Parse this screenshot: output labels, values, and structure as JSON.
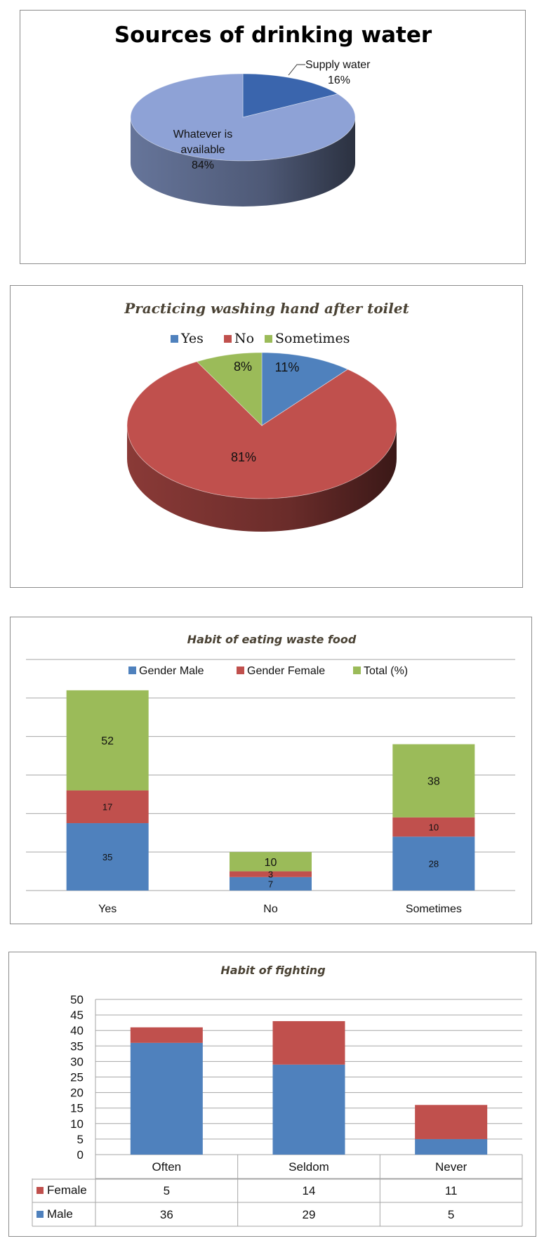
{
  "chart_data": [
    {
      "type": "pie",
      "title": "Sources of drinking water",
      "slices": [
        {
          "label": "Supply water",
          "percent_label": "16%",
          "value": 16,
          "color": "#3a65ad"
        },
        {
          "label_lines": [
            "Whatever is",
            "available"
          ],
          "percent_label": "84%",
          "value": 84,
          "color": "#8ea2d6"
        }
      ]
    },
    {
      "type": "pie",
      "title": "Practicing washing hand after toilet",
      "legend": [
        "Yes",
        "No",
        "Sometimes"
      ],
      "legend_position": "top",
      "slices": [
        {
          "label": "Yes",
          "percent_label": "11%",
          "value": 11,
          "color": "#4f81bd"
        },
        {
          "label": "No",
          "percent_label": "81%",
          "value": 81,
          "color": "#c0504d"
        },
        {
          "label": "Sometimes",
          "percent_label": "8%",
          "value": 8,
          "color": "#9bbb59"
        }
      ]
    },
    {
      "type": "bar",
      "stacked": true,
      "title": "Habit of eating waste food",
      "categories": [
        "Yes",
        "No",
        "Sometimes"
      ],
      "legend_position": "top",
      "series": [
        {
          "name": "Gender Male",
          "values": [
            35,
            7,
            28
          ],
          "value_labels": [
            "35",
            "7",
            "28"
          ],
          "color": "#4f81bd"
        },
        {
          "name": "Gender Female",
          "values": [
            17,
            3,
            10
          ],
          "value_labels": [
            "17",
            "3",
            "10"
          ],
          "color": "#c0504d"
        },
        {
          "name": "Total (%)",
          "values": [
            52,
            10,
            38
          ],
          "value_labels": [
            "52",
            "10",
            "38"
          ],
          "color": "#9bbb59"
        }
      ],
      "ylim": [
        0,
        120
      ],
      "grid": true
    },
    {
      "type": "bar",
      "stacked": true,
      "title": "Habit of fighting",
      "categories": [
        "Often",
        "Seldom",
        "Never"
      ],
      "yticks": [
        "0",
        "5",
        "10",
        "15",
        "20",
        "25",
        "30",
        "35",
        "40",
        "45",
        "50"
      ],
      "ylim": [
        0,
        50
      ],
      "grid": true,
      "series": [
        {
          "name": "Male",
          "values": [
            36,
            29,
            5
          ],
          "value_labels": [
            "36",
            "29",
            "5"
          ],
          "color": "#4f81bd"
        },
        {
          "name": "Female",
          "values": [
            5,
            14,
            11
          ],
          "value_labels": [
            "5",
            "14",
            "11"
          ],
          "color": "#c0504d"
        }
      ],
      "data_table": true
    }
  ]
}
